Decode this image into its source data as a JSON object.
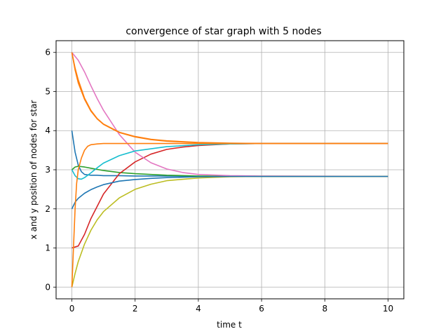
{
  "chart_data": {
    "type": "line",
    "title": "convergence of star graph with 5 nodes",
    "xlabel": "time t",
    "ylabel": "x and y position of nodes for star",
    "xlim": [
      -0.5,
      10.5
    ],
    "ylim": [
      -0.3,
      6.3
    ],
    "xticks": [
      0,
      2,
      4,
      6,
      8,
      10
    ],
    "yticks": [
      0,
      1,
      2,
      3,
      4,
      5,
      6
    ],
    "grid": true,
    "series": [
      {
        "color": "#1f77b4",
        "x": [
          0,
          0.1,
          0.2,
          0.3,
          0.4,
          0.6,
          0.8,
          1.0,
          1.5,
          2.0,
          3.0,
          4.0,
          6.0,
          10.0
        ],
        "y": [
          4.0,
          3.45,
          3.12,
          2.95,
          2.88,
          2.86,
          2.86,
          2.85,
          2.85,
          2.84,
          2.84,
          2.83,
          2.83,
          2.83
        ]
      },
      {
        "color": "#ff7f0e",
        "x": [
          0,
          0.1,
          0.2,
          0.4,
          0.6,
          0.8,
          1.0,
          1.5,
          2.0,
          2.5,
          3.0,
          4.0,
          5.0,
          6.0,
          10.0
        ],
        "y": [
          6.0,
          5.55,
          5.22,
          4.8,
          4.5,
          4.3,
          4.16,
          3.95,
          3.84,
          3.77,
          3.73,
          3.69,
          3.67,
          3.67,
          3.67
        ]
      },
      {
        "color": "#2ca02c",
        "x": [
          0,
          0.1,
          0.2,
          0.4,
          0.6,
          1.0,
          1.5,
          2.0,
          3.0,
          4.0,
          6.0,
          10.0
        ],
        "y": [
          3.0,
          3.07,
          3.09,
          3.07,
          3.04,
          2.98,
          2.93,
          2.9,
          2.86,
          2.84,
          2.83,
          2.83
        ]
      },
      {
        "color": "#d62728",
        "x": [
          0,
          0.2,
          0.4,
          0.6,
          1.0,
          1.5,
          2.0,
          2.5,
          3.0,
          3.5,
          4.0,
          5.0,
          6.0,
          10.0
        ],
        "y": [
          1.0,
          1.05,
          1.35,
          1.75,
          2.38,
          2.9,
          3.2,
          3.4,
          3.52,
          3.58,
          3.62,
          3.66,
          3.67,
          3.67
        ]
      },
      {
        "color": "#e377c2",
        "x": [
          0,
          0.2,
          0.4,
          0.6,
          0.8,
          1.0,
          1.5,
          2.0,
          2.5,
          3.0,
          3.5,
          4.0,
          5.0,
          6.0,
          10.0
        ],
        "y": [
          6.0,
          5.8,
          5.5,
          5.15,
          4.82,
          4.52,
          3.9,
          3.45,
          3.18,
          3.02,
          2.93,
          2.88,
          2.85,
          2.84,
          2.83
        ]
      },
      {
        "color": "#bcbd22",
        "x": [
          0,
          0.1,
          0.2,
          0.4,
          0.6,
          0.8,
          1.0,
          1.5,
          2.0,
          2.5,
          3.0,
          4.0,
          5.0,
          6.0,
          10.0
        ],
        "y": [
          0.0,
          0.35,
          0.65,
          1.1,
          1.45,
          1.72,
          1.93,
          2.28,
          2.5,
          2.63,
          2.72,
          2.79,
          2.82,
          2.83,
          2.83
        ]
      },
      {
        "color": "#17becf",
        "x": [
          0,
          0.1,
          0.2,
          0.3,
          0.4,
          0.6,
          0.8,
          1.0,
          1.5,
          2.0,
          3.0,
          4.0,
          5.0,
          6.0,
          10.0
        ],
        "y": [
          3.0,
          2.85,
          2.77,
          2.76,
          2.8,
          2.92,
          3.05,
          3.17,
          3.36,
          3.48,
          3.59,
          3.64,
          3.66,
          3.67,
          3.67
        ]
      },
      {
        "color": "#1f77b4",
        "x": [
          0,
          0.1,
          0.2,
          0.4,
          0.6,
          0.8,
          1.0,
          1.5,
          2.0,
          2.5,
          3.0,
          4.0,
          5.0,
          6.0,
          10.0
        ],
        "y": [
          2.0,
          2.17,
          2.27,
          2.4,
          2.49,
          2.56,
          2.62,
          2.71,
          2.75,
          2.78,
          2.8,
          2.82,
          2.83,
          2.83,
          2.83
        ]
      },
      {
        "color": "#ff7f0e",
        "x": [
          0,
          0.05,
          0.1,
          0.15,
          0.2,
          0.3,
          0.4,
          0.5,
          0.6,
          0.8,
          1.0,
          1.5,
          2.0,
          4.0,
          10.0
        ],
        "y": [
          0.0,
          1.0,
          2.0,
          2.65,
          3.0,
          3.3,
          3.5,
          3.6,
          3.64,
          3.66,
          3.67,
          3.67,
          3.67,
          3.67,
          3.67
        ]
      },
      {
        "color": "#ff7f0e",
        "x": [
          0,
          0.1,
          0.2,
          0.4,
          0.6,
          0.8,
          1.0,
          1.5,
          2.0,
          2.5,
          3.0,
          4.0,
          5.0,
          6.0,
          10.0
        ],
        "y": [
          6.0,
          5.6,
          5.3,
          4.83,
          4.52,
          4.31,
          4.17,
          3.96,
          3.85,
          3.78,
          3.74,
          3.7,
          3.68,
          3.67,
          3.67
        ]
      }
    ]
  }
}
